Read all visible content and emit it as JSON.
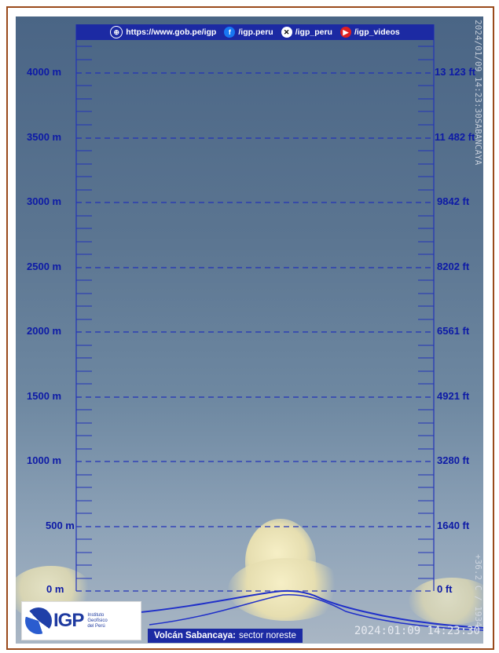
{
  "top_bar": {
    "website": "https://www.gob.pe/igp",
    "facebook": "/igp.peru",
    "x": "/igp_peru",
    "youtube": "/igp_videos"
  },
  "left_scale": [
    "4000 m",
    "3500 m",
    "3000 m",
    "2500 m",
    "2000 m",
    "1500 m",
    "1000 m",
    "500 m",
    "0 m"
  ],
  "right_scale": [
    "13 123 ft",
    "11 482 ft",
    "9842 ft",
    "8202 ft",
    "6561 ft",
    "4921 ft",
    "3280 ft",
    "1640 ft",
    "0 ft"
  ],
  "overlay_vertical_top": "2024/01/09 14:23:30SABANCAYA",
  "overlay_vertical_bottom": "+36.2 C / 1934",
  "logo": {
    "name": "IGP",
    "subtitle": [
      "Instituto",
      "Geofísico",
      "del Perú"
    ]
  },
  "caption": {
    "volcano": "Volcán Sabancaya:",
    "sector": "sector noreste"
  },
  "timestamp": "2024:01:09 14:23:30",
  "colors": {
    "scale": "#1c2aa3",
    "frame": "#9a4a1b"
  }
}
